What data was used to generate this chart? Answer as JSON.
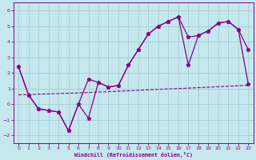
{
  "xlabel": "Windchill (Refroidissement éolien,°C)",
  "xlim": [
    -0.5,
    23.5
  ],
  "ylim": [
    -2.5,
    6.5
  ],
  "xticks": [
    0,
    1,
    2,
    3,
    4,
    5,
    6,
    7,
    8,
    9,
    10,
    11,
    12,
    13,
    14,
    15,
    16,
    17,
    18,
    19,
    20,
    21,
    22,
    23
  ],
  "yticks": [
    -2,
    -1,
    0,
    1,
    2,
    3,
    4,
    5,
    6
  ],
  "bg_color": "#c5e8ee",
  "line_color": "#880088",
  "grid_color": "#a8ccd4",
  "line1_x": [
    0,
    1,
    2,
    3,
    4,
    5,
    6,
    7,
    8,
    9,
    10,
    11,
    12,
    13,
    14,
    15,
    16,
    17,
    18,
    19,
    20,
    21,
    22,
    23
  ],
  "line1_y": [
    2.4,
    0.6,
    -0.3,
    -0.4,
    -0.5,
    -1.7,
    0.0,
    1.6,
    1.4,
    1.1,
    1.2,
    2.5,
    3.5,
    4.5,
    5.0,
    5.3,
    5.6,
    2.5,
    4.4,
    4.7,
    5.2,
    5.3,
    4.8,
    1.3
  ],
  "line2_x": [
    0,
    1,
    2,
    3,
    4,
    5,
    6,
    7,
    8,
    9,
    10,
    11,
    12,
    13,
    14,
    15,
    16,
    17,
    18,
    19,
    20,
    21,
    22,
    23
  ],
  "line2_y": [
    2.4,
    0.6,
    -0.3,
    -0.4,
    -0.5,
    -1.7,
    0.0,
    -0.9,
    1.4,
    1.1,
    1.2,
    2.5,
    3.5,
    4.5,
    5.0,
    5.3,
    5.6,
    4.3,
    4.4,
    4.7,
    5.2,
    5.3,
    4.8,
    3.5
  ],
  "line3_x": [
    0,
    1,
    2,
    3,
    4,
    5,
    6,
    7,
    8,
    9,
    10,
    11,
    12,
    13,
    14,
    15,
    16,
    17,
    18,
    19,
    20,
    21,
    22,
    23
  ],
  "line3_y": [
    0.6,
    0.62,
    0.64,
    0.66,
    0.68,
    0.7,
    0.72,
    0.75,
    0.78,
    0.8,
    0.83,
    0.86,
    0.89,
    0.92,
    0.95,
    0.98,
    1.0,
    1.03,
    1.06,
    1.09,
    1.12,
    1.15,
    1.18,
    1.22
  ]
}
